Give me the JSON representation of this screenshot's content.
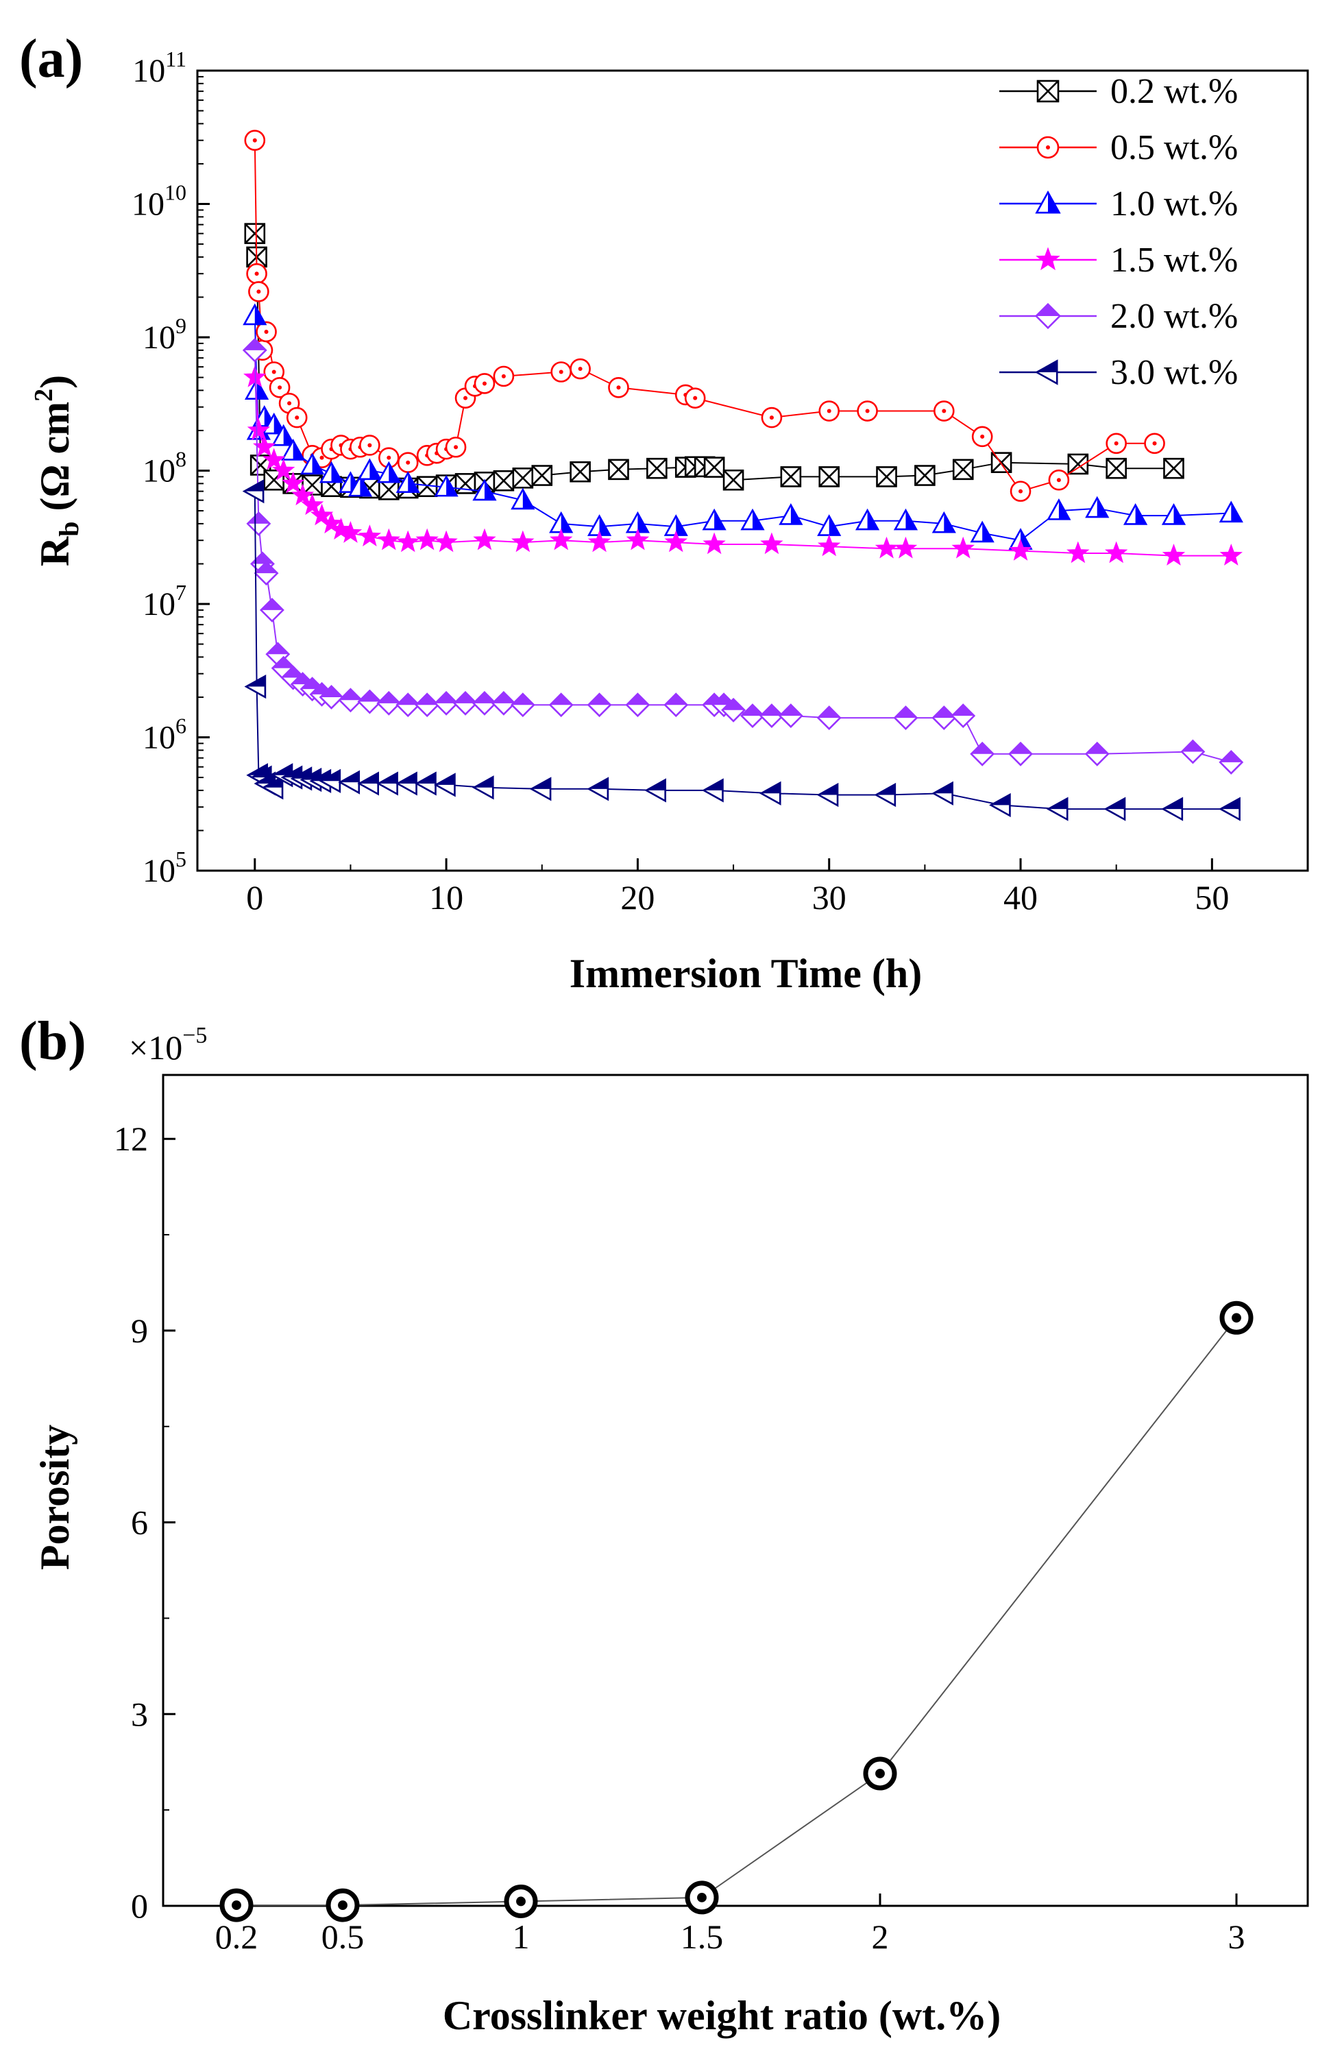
{
  "chart_data": [
    {
      "panel_label": "(a)",
      "type": "line",
      "yscale": "log",
      "xlabel": "Immersion Time (h)",
      "ylabel_main": "R",
      "ylabel_sub": "b",
      "ylabel_unit": " (Ω cm",
      "ylabel_unit_sup": "2",
      "ylabel_unit_close": ")",
      "xlim": [
        -3,
        55
      ],
      "ylim": [
        100000,
        100000000000
      ],
      "xticks": [
        0,
        10,
        20,
        30,
        40,
        50
      ],
      "xtick_labels": [
        "0",
        "10",
        "20",
        "30",
        "40",
        "50"
      ],
      "yticks": [
        100000,
        1000000,
        10000000,
        100000000,
        1000000000,
        10000000000,
        100000000000
      ],
      "ytick_base": "10",
      "ytick_exponents": [
        "5",
        "6",
        "7",
        "8",
        "9",
        "10",
        "11"
      ],
      "legend_position": "top-right",
      "series": [
        {
          "name": "0.2 wt.%",
          "color": "#000000",
          "marker": "square-x",
          "points": [
            [
              0,
              6000000000.0
            ],
            [
              0.1,
              4000000000.0
            ],
            [
              0.3,
              110000000.0
            ],
            [
              1,
              85000000.0
            ],
            [
              2,
              80000000.0
            ],
            [
              3,
              78000000.0
            ],
            [
              4,
              76000000.0
            ],
            [
              5,
              75000000.0
            ],
            [
              6,
              74000000.0
            ],
            [
              7,
              72000000.0
            ],
            [
              8,
              74000000.0
            ],
            [
              9,
              76000000.0
            ],
            [
              10,
              78000000.0
            ],
            [
              11,
              80000000.0
            ],
            [
              12,
              82000000.0
            ],
            [
              13,
              84000000.0
            ],
            [
              14,
              88000000.0
            ],
            [
              15,
              92000000.0
            ],
            [
              17,
              98000000.0
            ],
            [
              19,
              102000000.0
            ],
            [
              21,
              104000000.0
            ],
            [
              22.5,
              106000000.0
            ],
            [
              23,
              107000000.0
            ],
            [
              23.5,
              107000000.0
            ],
            [
              24,
              106000000.0
            ],
            [
              25,
              85000000.0
            ],
            [
              28,
              90000000.0
            ],
            [
              30,
              90000000.0
            ],
            [
              33,
              90000000.0
            ],
            [
              35,
              92000000.0
            ],
            [
              37,
              102000000.0
            ],
            [
              39,
              115000000.0
            ],
            [
              43,
              112000000.0
            ],
            [
              45,
              104000000.0
            ],
            [
              48,
              104000000.0
            ]
          ]
        },
        {
          "name": "0.5 wt.%",
          "color": "#ff0000",
          "marker": "circle-dot",
          "points": [
            [
              0,
              30000000000.0
            ],
            [
              0.1,
              3000000000.0
            ],
            [
              0.2,
              2200000000.0
            ],
            [
              0.4,
              800000000.0
            ],
            [
              0.6,
              1100000000.0
            ],
            [
              1,
              550000000.0
            ],
            [
              1.3,
              420000000.0
            ],
            [
              1.8,
              320000000.0
            ],
            [
              2.2,
              250000000.0
            ],
            [
              3,
              130000000.0
            ],
            [
              3.5,
              125000000.0
            ],
            [
              4,
              145000000.0
            ],
            [
              4.5,
              155000000.0
            ],
            [
              5,
              145000000.0
            ],
            [
              5.5,
              150000000.0
            ],
            [
              6,
              155000000.0
            ],
            [
              7,
              125000000.0
            ],
            [
              8,
              115000000.0
            ],
            [
              9,
              130000000.0
            ],
            [
              9.5,
              135000000.0
            ],
            [
              10,
              145000000.0
            ],
            [
              10.5,
              150000000.0
            ],
            [
              11,
              350000000.0
            ],
            [
              11.5,
              430000000.0
            ],
            [
              12,
              450000000.0
            ],
            [
              13,
              510000000.0
            ],
            [
              16,
              550000000.0
            ],
            [
              17,
              580000000.0
            ],
            [
              19,
              420000000.0
            ],
            [
              22.5,
              370000000.0
            ],
            [
              23,
              350000000.0
            ],
            [
              27,
              250000000.0
            ],
            [
              30,
              280000000.0
            ],
            [
              32,
              280000000.0
            ],
            [
              36,
              280000000.0
            ],
            [
              38,
              180000000.0
            ],
            [
              40,
              70000000.0
            ],
            [
              42,
              85000000.0
            ],
            [
              45,
              160000000.0
            ],
            [
              47,
              160000000.0
            ]
          ]
        },
        {
          "name": "1.0 wt.%",
          "color": "#0000ff",
          "marker": "triangle",
          "points": [
            [
              0,
              1450000000.0
            ],
            [
              0.1,
              400000000.0
            ],
            [
              0.2,
              200000000.0
            ],
            [
              0.5,
              250000000.0
            ],
            [
              1,
              220000000.0
            ],
            [
              1.5,
              180000000.0
            ],
            [
              2,
              140000000.0
            ],
            [
              3,
              110000000.0
            ],
            [
              4,
              95000000.0
            ],
            [
              5,
              80000000.0
            ],
            [
              5.5,
              75000000.0
            ],
            [
              6,
              100000000.0
            ],
            [
              7,
              95000000.0
            ],
            [
              8,
              80000000.0
            ],
            [
              10,
              75000000.0
            ],
            [
              12,
              70000000.0
            ],
            [
              14,
              60000000.0
            ],
            [
              16,
              40000000.0
            ],
            [
              18,
              38000000.0
            ],
            [
              20,
              40000000.0
            ],
            [
              22,
              38000000.0
            ],
            [
              24,
              42000000.0
            ],
            [
              26,
              42000000.0
            ],
            [
              28,
              46000000.0
            ],
            [
              30,
              38000000.0
            ],
            [
              32,
              42000000.0
            ],
            [
              34,
              42000000.0
            ],
            [
              36,
              40000000.0
            ],
            [
              38,
              34000000.0
            ],
            [
              40,
              30000000.0
            ],
            [
              42,
              50000000.0
            ],
            [
              44,
              52000000.0
            ],
            [
              46,
              46000000.0
            ],
            [
              48,
              46000000.0
            ],
            [
              51,
              48000000.0
            ]
          ]
        },
        {
          "name": "1.5 wt.%",
          "color": "#ff00ff",
          "marker": "star",
          "points": [
            [
              0,
              500000000.0
            ],
            [
              0.2,
              200000000.0
            ],
            [
              0.5,
              150000000.0
            ],
            [
              1,
              120000000.0
            ],
            [
              1.5,
              100000000.0
            ],
            [
              2,
              80000000.0
            ],
            [
              2.5,
              65000000.0
            ],
            [
              3,
              55000000.0
            ],
            [
              3.5,
              46000000.0
            ],
            [
              4,
              40000000.0
            ],
            [
              4.5,
              36000000.0
            ],
            [
              5,
              34000000.0
            ],
            [
              6,
              32000000.0
            ],
            [
              7,
              30000000.0
            ],
            [
              8,
              29000000.0
            ],
            [
              9,
              30000000.0
            ],
            [
              10,
              29000000.0
            ],
            [
              12,
              30000000.0
            ],
            [
              14,
              29000000.0
            ],
            [
              16,
              30000000.0
            ],
            [
              18,
              29000000.0
            ],
            [
              20,
              30000000.0
            ],
            [
              22,
              29000000.0
            ],
            [
              24,
              28000000.0
            ],
            [
              27,
              28000000.0
            ],
            [
              30,
              27000000.0
            ],
            [
              33,
              26000000.0
            ],
            [
              34,
              26000000.0
            ],
            [
              37,
              26000000.0
            ],
            [
              40,
              25000000.0
            ],
            [
              43,
              24000000.0
            ],
            [
              45,
              24000000.0
            ],
            [
              48,
              23000000.0
            ],
            [
              51,
              23000000.0
            ]
          ]
        },
        {
          "name": "2.0 wt.%",
          "color": "#9933ff",
          "marker": "diamond",
          "points": [
            [
              0,
              800000000.0
            ],
            [
              0.2,
              40000000.0
            ],
            [
              0.4,
              20000000.0
            ],
            [
              0.6,
              17000000.0
            ],
            [
              0.9,
              9000000.0
            ],
            [
              1.2,
              4200000.0
            ],
            [
              1.5,
              3300000.0
            ],
            [
              2,
              2800000.0
            ],
            [
              2.5,
              2500000.0
            ],
            [
              3,
              2300000.0
            ],
            [
              3.5,
              2100000.0
            ],
            [
              4,
              2000000.0
            ],
            [
              5,
              1900000.0
            ],
            [
              6,
              1850000.0
            ],
            [
              7,
              1800000.0
            ],
            [
              8,
              1750000.0
            ],
            [
              9,
              1750000.0
            ],
            [
              10,
              1800000.0
            ],
            [
              11,
              1800000.0
            ],
            [
              12,
              1800000.0
            ],
            [
              13,
              1800000.0
            ],
            [
              14,
              1750000.0
            ],
            [
              16,
              1750000.0
            ],
            [
              18,
              1750000.0
            ],
            [
              20,
              1750000.0
            ],
            [
              22,
              1750000.0
            ],
            [
              24,
              1750000.0
            ],
            [
              24.5,
              1750000.0
            ],
            [
              25,
              1600000.0
            ],
            [
              26,
              1450000.0
            ],
            [
              27,
              1450000.0
            ],
            [
              28,
              1450000.0
            ],
            [
              30,
              1400000.0
            ],
            [
              34,
              1400000.0
            ],
            [
              36,
              1400000.0
            ],
            [
              37,
              1450000.0
            ],
            [
              38,
              750000.0
            ],
            [
              40,
              750000.0
            ],
            [
              44,
              750000.0
            ],
            [
              49,
              780000.0
            ],
            [
              51,
              650000.0
            ]
          ]
        },
        {
          "name": "3.0 wt.%",
          "color": "#000080",
          "marker": "triangle-left",
          "points": [
            [
              0,
              70000000.0
            ],
            [
              0.1,
              2400000.0
            ],
            [
              0.2,
              520000.0
            ],
            [
              0.4,
              500000.0
            ],
            [
              0.6,
              450000.0
            ],
            [
              1,
              420000.0
            ],
            [
              1.5,
              520000.0
            ],
            [
              2,
              500000.0
            ],
            [
              2.5,
              490000.0
            ],
            [
              3,
              480000.0
            ],
            [
              3.5,
              470000.0
            ],
            [
              4,
              470000.0
            ],
            [
              5,
              460000.0
            ],
            [
              6,
              450000.0
            ],
            [
              7,
              450000.0
            ],
            [
              8,
              450000.0
            ],
            [
              9,
              450000.0
            ],
            [
              10,
              440000.0
            ],
            [
              12,
              420000.0
            ],
            [
              15,
              410000.0
            ],
            [
              18,
              410000.0
            ],
            [
              21,
              400000.0
            ],
            [
              24,
              400000.0
            ],
            [
              27,
              380000.0
            ],
            [
              30,
              370000.0
            ],
            [
              33,
              370000.0
            ],
            [
              36,
              380000.0
            ],
            [
              39,
              310000.0
            ],
            [
              42,
              290000.0
            ],
            [
              45,
              290000.0
            ],
            [
              48,
              290000.0
            ],
            [
              51,
              290000.0
            ]
          ]
        }
      ]
    },
    {
      "panel_label": "(b)",
      "type": "line",
      "title": "",
      "xlabel": "Crosslinker weight ratio (wt.%)",
      "ylabel": "Porosity",
      "multiplier_prefix": "×10",
      "multiplier_exponent": "−5",
      "ylim": [
        0,
        13
      ],
      "yticks": [
        0,
        3,
        6,
        9,
        12
      ],
      "ytick_labels": [
        "0",
        "3",
        "6",
        "9",
        "12"
      ],
      "x": [
        0.2,
        0.5,
        1,
        1.5,
        2,
        3
      ],
      "xtick_labels": [
        "0.2",
        "0.5",
        "1",
        "1.5",
        "2",
        "3"
      ],
      "values": [
        0.01,
        0.01,
        0.07,
        0.13,
        2.07,
        9.2
      ],
      "color": "#000000",
      "marker": "bullseye"
    }
  ]
}
